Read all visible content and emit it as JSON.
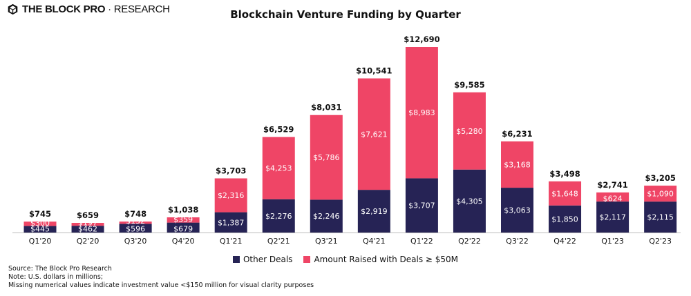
{
  "brand": {
    "name_bold": "THE BLOCK PRO",
    "separator": "·",
    "name_thin": "RESEARCH",
    "logo_icon": "cube-logo-icon"
  },
  "colors": {
    "other": "#262355",
    "large": "#EF4566",
    "label_dark": "#111111",
    "label_light": "#ffffff"
  },
  "chart_data": {
    "type": "bar",
    "stacked": true,
    "title": "Blockchain Venture Funding by Quarter",
    "categories": [
      "Q1'20",
      "Q2'20",
      "Q3'20",
      "Q4'20",
      "Q1'21",
      "Q2'21",
      "Q3'21",
      "Q4'21",
      "Q1'22",
      "Q2'22",
      "Q3'22",
      "Q4'22",
      "Q1'23",
      "Q2'23"
    ],
    "series": [
      {
        "name": "Other Deals",
        "values": [
          445,
          462,
          596,
          679,
          1387,
          2276,
          2246,
          2919,
          3707,
          4305,
          3063,
          1850,
          2117,
          2115
        ],
        "labels": [
          "$445",
          "$462",
          "$596",
          "$679",
          "$1,387",
          "$2,276",
          "$2,246",
          "$2,919",
          "$3,707",
          "$4,305",
          "$3,063",
          "$1,850",
          "$2,117",
          "$2,115"
        ]
      },
      {
        "name": "Amount Raised with Deals ≥ $50M",
        "values": [
          300,
          197,
          152,
          359,
          2316,
          4253,
          5786,
          7621,
          8983,
          5280,
          3168,
          1648,
          624,
          1090
        ],
        "labels": [
          "$300",
          "$197",
          "$152",
          "$359",
          "$2,316",
          "$4,253",
          "$5,786",
          "$7,621",
          "$8,983",
          "$5,280",
          "$3,168",
          "$1,648",
          "$624",
          "$1,090"
        ]
      }
    ],
    "totals": [
      745,
      659,
      748,
      1038,
      3703,
      6529,
      8031,
      10541,
      12690,
      9585,
      6231,
      3498,
      2741,
      3205
    ],
    "total_labels": [
      "$745",
      "$659",
      "$748",
      "$1,038",
      "$3,703",
      "$6,529",
      "$8,031",
      "$10,541",
      "$12,690",
      "$9,585",
      "$6,231",
      "$3,498",
      "$2,741",
      "$3,205"
    ],
    "ylim": [
      0,
      12690
    ],
    "grid": false,
    "y_axis_visible": false,
    "legend_position": "bottom-center"
  },
  "notes": [
    "Source: The Block Pro Research",
    "Note: U.S. dollars in millions;",
    "Missing numerical values indicate investment value <$150 million for visual clarity purposes"
  ]
}
